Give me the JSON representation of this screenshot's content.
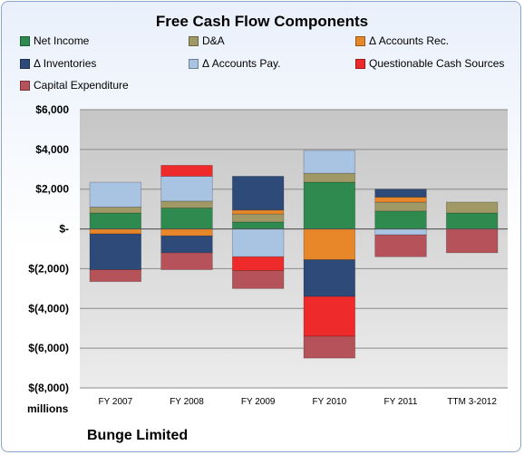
{
  "chart_data": {
    "type": "bar",
    "stacked": true,
    "title": "Free Cash Flow Components",
    "categories": [
      "FY 2007",
      "FY 2008",
      "FY 2009",
      "FY 2010",
      "FY 2011",
      "TTM 3-2012"
    ],
    "ylim": [
      -8000,
      6000
    ],
    "yticks": [
      6000,
      4000,
      2000,
      0,
      -2000,
      -4000,
      -6000,
      -8000
    ],
    "ytick_labels": [
      "$6,000",
      "$4,000",
      "$2,000",
      "$-",
      "$(2,000)",
      "$(4,000)",
      "$(6,000)",
      "$(8,000)"
    ],
    "unit_label": "millions",
    "grid": true,
    "legend_position": "top",
    "series": [
      {
        "name": "Net Income",
        "color": "#2f8a4f",
        "values": [
          800,
          1050,
          350,
          2350,
          900,
          800
        ]
      },
      {
        "name": "D&A",
        "color": "#a09865",
        "values": [
          300,
          350,
          400,
          450,
          450,
          550
        ]
      },
      {
        "name": "Δ Accounts Rec.",
        "color": "#e8862a",
        "values": [
          -250,
          -350,
          200,
          -1550,
          250,
          0
        ]
      },
      {
        "name": "Δ Inventories",
        "color": "#2e4a78",
        "values": [
          -1800,
          -850,
          1700,
          -1850,
          400,
          0
        ]
      },
      {
        "name": "Δ Accounts Pay.",
        "color": "#a9c3e3",
        "values": [
          1250,
          1250,
          -1400,
          1150,
          -300,
          0
        ]
      },
      {
        "name": "Questionable Cash Sources",
        "color": "#ee2a2a",
        "values": [
          0,
          550,
          -700,
          -2000,
          0,
          0
        ]
      },
      {
        "name": "Capital Expenditure",
        "color": "#b5525a",
        "values": [
          -600,
          -850,
          -900,
          -1100,
          -1100,
          -1200
        ]
      }
    ]
  },
  "company": "Bunge Limited"
}
